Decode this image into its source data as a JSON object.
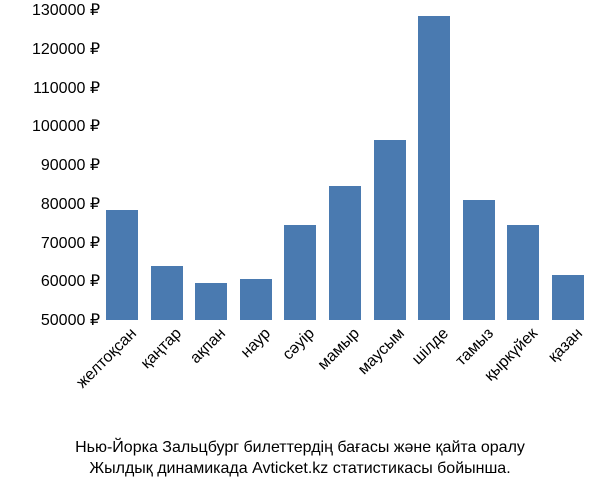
{
  "chart": {
    "type": "bar",
    "categories": [
      "желтоқсан",
      "қаңтар",
      "ақпан",
      "наур",
      "сәуір",
      "мамыр",
      "маусым",
      "шілде",
      "тамыз",
      "қыркүйек",
      "қазан"
    ],
    "values": [
      78500,
      64000,
      59500,
      60500,
      74500,
      84500,
      96500,
      128500,
      81000,
      74500,
      61500
    ],
    "bar_color": "#4a7ab0",
    "text_color": "#000000",
    "background_color": "#ffffff",
    "ylim": [
      50000,
      130000
    ],
    "yticks": [
      50000,
      60000,
      70000,
      80000,
      90000,
      100000,
      110000,
      120000,
      130000
    ],
    "ytick_labels": [
      "50000 ₽",
      "60000 ₽",
      "70000 ₽",
      "80000 ₽",
      "90000 ₽",
      "100000 ₽",
      "110000 ₽",
      "120000 ₽",
      "130000 ₽"
    ],
    "bar_width": 0.72,
    "label_fontsize": 16,
    "x_rotation_deg": 45
  },
  "caption": {
    "line1": "Нью-Йорка Зальцбург билеттердің бағасы және қайта оралу",
    "line2": "Жылдық динамикада Avticket.kz статистикасы бойынша."
  }
}
